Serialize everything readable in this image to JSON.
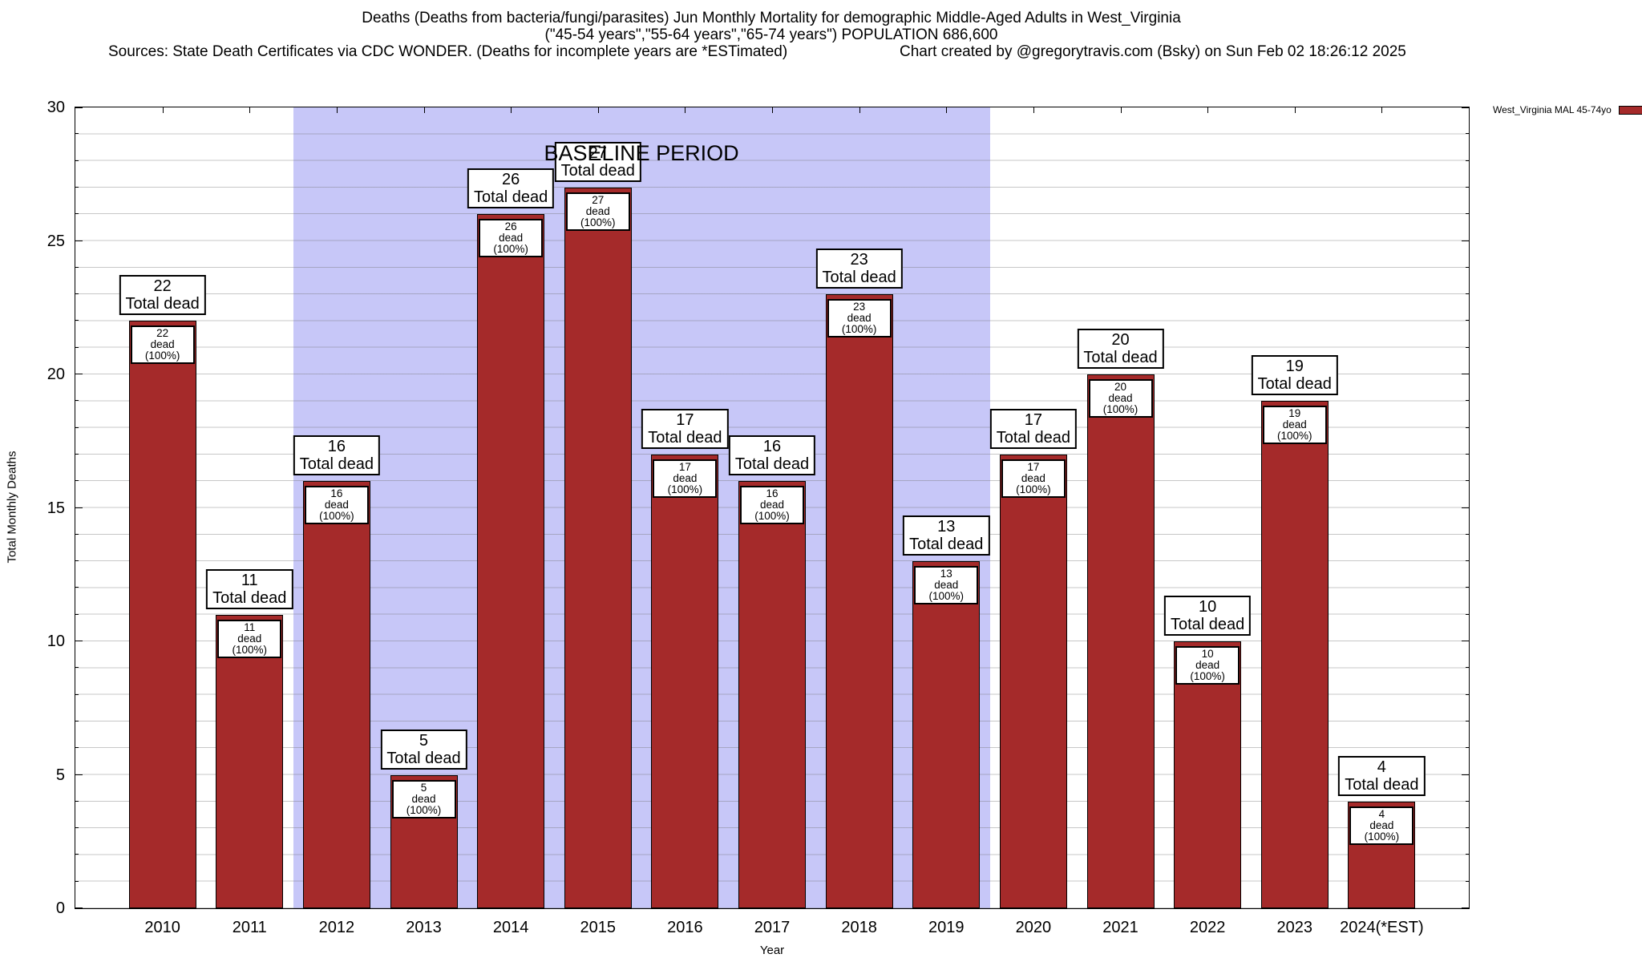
{
  "header": {
    "line1": "Deaths (Deaths from bacteria/fungi/parasites) Jun Monthly Mortality for demographic Middle-Aged Adults in West_Virginia",
    "line2": "(\"45-54 years\",\"55-64 years\",\"65-74 years\") POPULATION 686,600",
    "source_note": "Sources: State Death Certificates via CDC WONDER. (Deaths for incomplete years are *ESTimated)",
    "credit": "Chart created by @gregorytravis.com (Bsky) on Sun Feb 02 18:26:12 2025"
  },
  "legend": {
    "label": "West_Virginia MAL 45-74yo",
    "swatch_color": "#A52A2A",
    "position": "top-right"
  },
  "chart_data": {
    "type": "bar",
    "title": "Deaths (Deaths from bacteria/fungi/parasites) Jun Monthly Mortality for demographic Middle-Aged Adults in West_Virginia",
    "subtitle": "(\"45-54 years\",\"55-64 years\",\"65-74 years\") POPULATION 686,600",
    "xlabel": "Year",
    "ylabel": "Total Monthly Deaths",
    "ylim": [
      0,
      30
    ],
    "y_major_step": 5,
    "y_minor_step": 1,
    "y_tick_labels": [
      "0",
      "5",
      "10",
      "15",
      "20",
      "25",
      "30"
    ],
    "grid": true,
    "categories": [
      "2010",
      "2011",
      "2012",
      "2013",
      "2014",
      "2015",
      "2016",
      "2017",
      "2018",
      "2019",
      "2020",
      "2021",
      "2022",
      "2023",
      "2024(*EST)"
    ],
    "series": [
      {
        "name": "West_Virginia MAL 45-74yo",
        "color": "#A52A2A",
        "values": [
          22,
          11,
          16,
          5,
          26,
          27,
          17,
          16,
          23,
          13,
          17,
          20,
          10,
          19,
          4
        ]
      }
    ],
    "bar_top_label_suffix": "Total dead",
    "bar_inner_label_suffix": "dead (100%)",
    "annotations": {
      "baseline_label": "BASELINE PERIOD",
      "baseline_start_category": "2012",
      "baseline_end_category": "2019",
      "baseline_fill": "#C7C7F8"
    }
  }
}
